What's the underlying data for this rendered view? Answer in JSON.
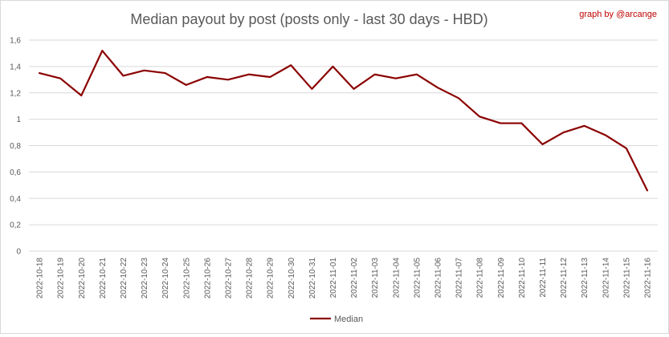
{
  "chart_data": {
    "type": "line",
    "title": "Median payout by post (posts only - last 30 days - HBD)",
    "credit": "graph by @arcange",
    "xlabel": "",
    "ylabel": "",
    "ylim": [
      0,
      1.6
    ],
    "y_ticks": [
      "0",
      "0,2",
      "0,4",
      "0,6",
      "0,8",
      "1",
      "1,2",
      "1,4",
      "1,6"
    ],
    "grid": true,
    "legend_position": "bottom",
    "categories": [
      "2022-10-18",
      "2022-10-19",
      "2022-10-20",
      "2022-10-21",
      "2022-10-22",
      "2022-10-23",
      "2022-10-24",
      "2022-10-25",
      "2022-10-26",
      "2022-10-27",
      "2022-10-28",
      "2022-10-29",
      "2022-10-30",
      "2022-10-31",
      "2022-11-01",
      "2022-11-02",
      "2022-11-03",
      "2022-11-04",
      "2022-11-05",
      "2022-11-06",
      "2022-11-07",
      "2022-11-08",
      "2022-11-09",
      "2022-11-10",
      "2022-11-11",
      "2022-11-12",
      "2022-11-13",
      "2022-11-14",
      "2022-11-15",
      "2022-11-16"
    ],
    "series": [
      {
        "name": "Median",
        "color": "#8b0000",
        "values": [
          1.35,
          1.31,
          1.18,
          1.52,
          1.33,
          1.37,
          1.35,
          1.26,
          1.32,
          1.3,
          1.34,
          1.32,
          1.41,
          1.23,
          1.4,
          1.23,
          1.34,
          1.31,
          1.34,
          1.24,
          1.16,
          1.02,
          0.97,
          0.97,
          0.81,
          0.9,
          0.95,
          0.88,
          0.78,
          0.46
        ]
      }
    ]
  }
}
